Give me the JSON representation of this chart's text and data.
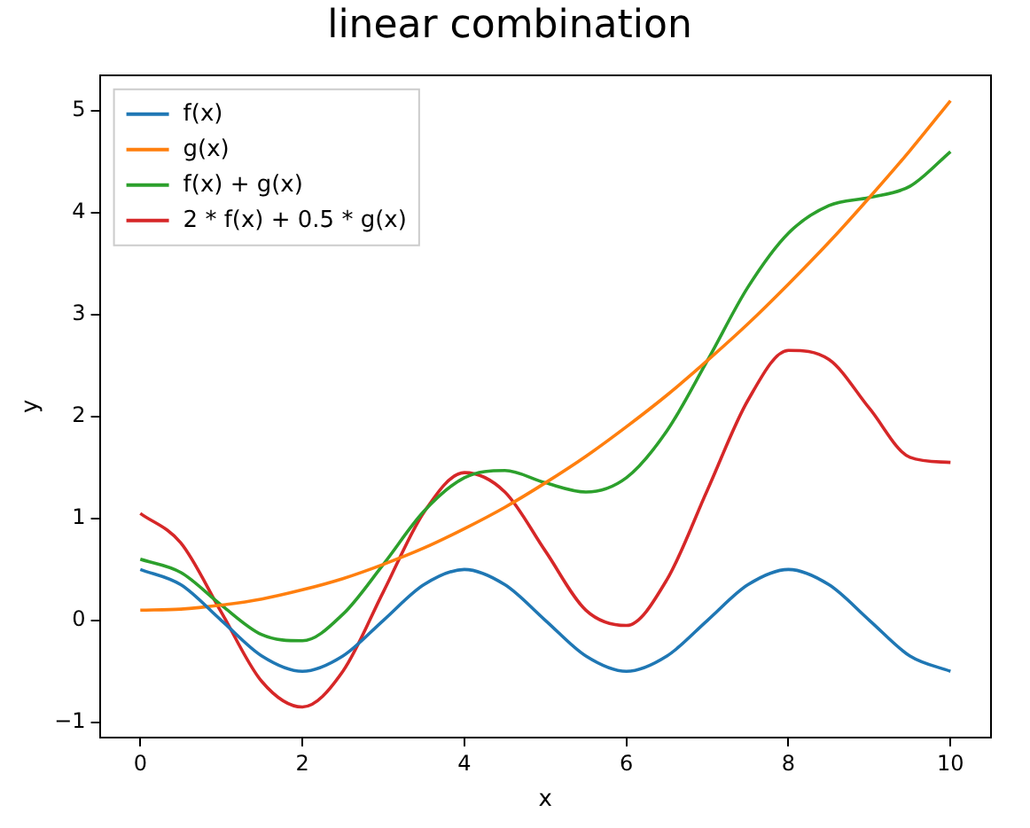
{
  "chart_data": {
    "type": "line",
    "title": "linear combination",
    "xlabel": "x",
    "ylabel": "y",
    "x": [
      0,
      0.5,
      1,
      1.5,
      2,
      2.5,
      3,
      3.5,
      4,
      4.5,
      5,
      5.5,
      6,
      6.5,
      7,
      7.5,
      8,
      8.5,
      9,
      9.5,
      10
    ],
    "series": [
      {
        "name": "f(x)",
        "color": "#1f77b4",
        "values": [
          0.5,
          0.35,
          0,
          -0.35,
          -0.5,
          -0.35,
          0,
          0.35,
          0.5,
          0.35,
          0,
          -0.35,
          -0.5,
          -0.35,
          0,
          0.35,
          0.5,
          0.35,
          0,
          -0.35,
          -0.5
        ]
      },
      {
        "name": "g(x)",
        "color": "#ff7f0e",
        "values": [
          0.1,
          0.11,
          0.15,
          0.21,
          0.3,
          0.41,
          0.55,
          0.71,
          0.9,
          1.11,
          1.35,
          1.61,
          1.9,
          2.21,
          2.55,
          2.91,
          3.3,
          3.71,
          4.15,
          4.61,
          5.1
        ]
      },
      {
        "name": "f(x) + g(x)",
        "color": "#2ca02c",
        "values": [
          0.6,
          0.47,
          0.15,
          -0.14,
          -0.2,
          0.06,
          0.55,
          1.07,
          1.4,
          1.47,
          1.35,
          1.26,
          1.4,
          1.86,
          2.55,
          3.27,
          3.8,
          4.07,
          4.15,
          4.26,
          4.6
        ]
      },
      {
        "name": "2 * f(x) + 0.5 * g(x)",
        "color": "#d62728",
        "values": [
          1.05,
          0.76,
          0.08,
          -0.6,
          -0.85,
          -0.5,
          0.28,
          1.06,
          1.45,
          1.26,
          0.68,
          0.1,
          -0.05,
          0.4,
          1.28,
          2.16,
          2.65,
          2.56,
          2.08,
          1.6,
          1.55
        ]
      }
    ],
    "xlim": [
      -0.5,
      10.5
    ],
    "xticks": [
      0,
      2,
      4,
      6,
      8,
      10
    ],
    "ylim": [
      -1.15,
      5.35
    ],
    "yticks": [
      -1,
      0,
      1,
      2,
      3,
      4,
      5
    ],
    "grid": false,
    "legend": "top left",
    "marker": "none",
    "line_style": "solid"
  }
}
